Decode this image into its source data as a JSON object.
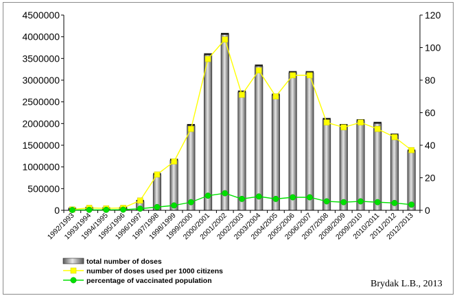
{
  "chart_data": {
    "type": "bar",
    "categories": [
      "1992/1993",
      "1993/1994",
      "1994/1995",
      "1995/1996",
      "1996/1997",
      "1997/1998",
      "1998/1999",
      "1999/2000",
      "2000/2001",
      "2001/2002",
      "2002/2003",
      "2003/2004",
      "2004/2005",
      "2005/2006",
      "2006/2007",
      "2007/2008",
      "2008/2009",
      "2009/2010",
      "2010/2011",
      "2011/2012",
      "2012/2013"
    ],
    "ylim": [
      0,
      4500000
    ],
    "y2lim": [
      0,
      120
    ],
    "yticks": [
      0,
      500000,
      1000000,
      1500000,
      2000000,
      2500000,
      3000000,
      3500000,
      4000000,
      4500000
    ],
    "y2ticks": [
      0,
      20,
      40,
      60,
      80,
      100,
      120
    ],
    "series": [
      {
        "name": "total number of doses",
        "type": "bar",
        "axis": "left",
        "color": "#9a9a9a",
        "values": [
          20000,
          40000,
          30000,
          40000,
          200000,
          820000,
          1150000,
          1950000,
          3580000,
          4050000,
          2720000,
          3320000,
          2650000,
          3170000,
          3170000,
          2090000,
          1950000,
          2060000,
          2000000,
          1730000,
          1360000
        ]
      },
      {
        "name": "number of doses used per 1000 citizens",
        "type": "line",
        "axis": "right",
        "color": "#ffff00",
        "values": [
          0.5,
          1.5,
          1.2,
          1.5,
          6,
          22,
          30,
          50,
          93,
          105,
          71,
          86,
          70,
          83,
          83,
          54,
          51,
          54,
          50,
          45,
          37
        ]
      },
      {
        "name": "percentage of vaccinated population",
        "type": "line",
        "axis": "right",
        "color": "#00e000",
        "values": [
          0.2,
          0.3,
          0.3,
          0.4,
          1,
          2,
          3,
          5,
          9,
          10.5,
          7,
          8.5,
          7,
          8,
          8,
          5.5,
          5,
          5.5,
          5,
          4.5,
          3.5
        ]
      }
    ],
    "legend_position": "bottom-left",
    "grid": false
  },
  "credit": "Brydak L.B., 2013"
}
